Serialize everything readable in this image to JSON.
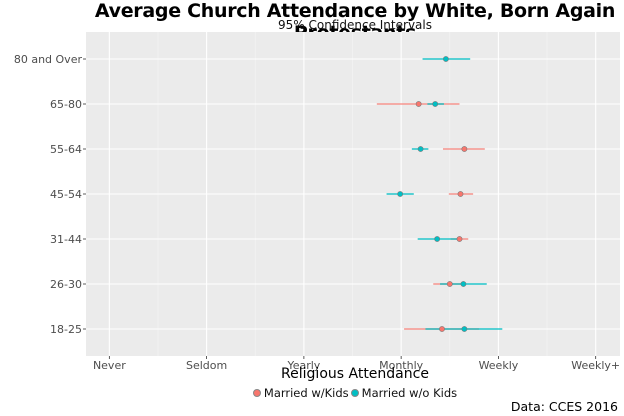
{
  "chart_data": {
    "type": "scatter",
    "subtype": "dot-with-confidence-intervals",
    "title": "Average Church Attendance by White, Born Again Protestants",
    "subtitle": "95% Confidence Intervals",
    "xlabel": "Religious Attendance",
    "ylabel": "",
    "caption": "Data: CCES 2016",
    "x_ticks": [
      {
        "value": 1,
        "label": "Never"
      },
      {
        "value": 2,
        "label": "Seldom"
      },
      {
        "value": 3,
        "label": "Yearly"
      },
      {
        "value": 4,
        "label": "Monthly"
      },
      {
        "value": 5,
        "label": "Weekly"
      },
      {
        "value": 6,
        "label": "Weekly+"
      }
    ],
    "xlim": [
      0.76,
      6.25
    ],
    "grid": true,
    "categories": [
      "18-25",
      "26-30",
      "31-44",
      "45-54",
      "55-64",
      "65-80",
      "80 and Over"
    ],
    "legend_position": "bottom",
    "series": [
      {
        "name": "Married w/Kids",
        "color": "#F8766D",
        "points": [
          {
            "category": "18-25",
            "mean": 4.42,
            "lo": 4.03,
            "hi": 4.8
          },
          {
            "category": "26-30",
            "mean": 4.5,
            "lo": 4.33,
            "hi": 4.65
          },
          {
            "category": "31-44",
            "mean": 4.6,
            "lo": 4.51,
            "hi": 4.69
          },
          {
            "category": "45-54",
            "mean": 4.61,
            "lo": 4.49,
            "hi": 4.74
          },
          {
            "category": "55-64",
            "mean": 4.65,
            "lo": 4.43,
            "hi": 4.86
          },
          {
            "category": "65-80",
            "mean": 4.18,
            "lo": 3.75,
            "hi": 4.6
          }
        ]
      },
      {
        "name": "Married w/o Kids",
        "color": "#00BFC4",
        "points": [
          {
            "category": "18-25",
            "mean": 4.65,
            "lo": 4.25,
            "hi": 5.04
          },
          {
            "category": "26-30",
            "mean": 4.64,
            "lo": 4.4,
            "hi": 4.88
          },
          {
            "category": "31-44",
            "mean": 4.37,
            "lo": 4.17,
            "hi": 4.6
          },
          {
            "category": "45-54",
            "mean": 3.99,
            "lo": 3.85,
            "hi": 4.13
          },
          {
            "category": "55-64",
            "mean": 4.2,
            "lo": 4.11,
            "hi": 4.28
          },
          {
            "category": "65-80",
            "mean": 4.35,
            "lo": 4.27,
            "hi": 4.44
          },
          {
            "category": "80 and Over",
            "mean": 4.46,
            "lo": 4.22,
            "hi": 4.71
          }
        ]
      }
    ]
  },
  "legend": {
    "items": [
      {
        "label": "Married w/Kids",
        "color": "#F8766D"
      },
      {
        "label": "Married w/o Kids",
        "color": "#00BFC4"
      }
    ]
  },
  "colors": {
    "panel_background": "#EBEBEB",
    "grid": "#FFFFFF"
  }
}
